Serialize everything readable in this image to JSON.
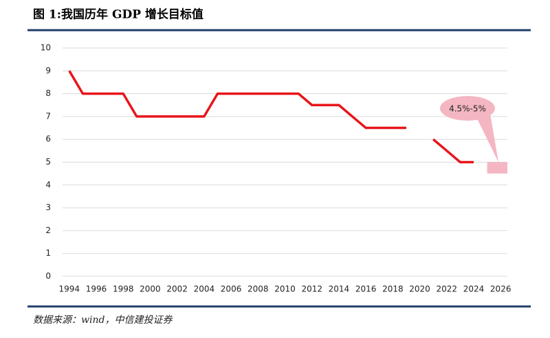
{
  "chart_data": {
    "type": "line",
    "title": "图 1:我国历年 GDP 增长目标值",
    "source": "数据来源：wind，中信建投证券",
    "x": [
      1994,
      1995,
      1996,
      1997,
      1998,
      1999,
      2000,
      2001,
      2002,
      2003,
      2004,
      2005,
      2006,
      2007,
      2008,
      2009,
      2010,
      2011,
      2012,
      2013,
      2014,
      2015,
      2016,
      2017,
      2018,
      2019,
      2020,
      2021,
      2022,
      2023,
      2024
    ],
    "values": [
      9,
      8,
      8,
      8,
      8,
      7,
      7,
      7,
      7,
      7,
      7,
      8,
      8,
      8,
      8,
      8,
      8,
      8,
      7.5,
      7.5,
      7.5,
      7,
      6.5,
      6.5,
      6.5,
      6.5,
      null,
      6,
      5.5,
      5,
      5
    ],
    "color": "#e8141b",
    "xlim": [
      1993.5,
      2026.5
    ],
    "xticks": [
      1994,
      1996,
      1998,
      2000,
      2002,
      2004,
      2006,
      2008,
      2010,
      2012,
      2014,
      2016,
      2018,
      2020,
      2022,
      2024,
      2026
    ],
    "ylim": [
      0,
      10
    ],
    "yticks": [
      0,
      1,
      2,
      3,
      4,
      5,
      6,
      7,
      8,
      9,
      10
    ],
    "grid": true,
    "annotation": {
      "text": "4.5%-5%",
      "x": 2025,
      "range": [
        4.5,
        5
      ],
      "color": "#f4b6c2"
    }
  }
}
